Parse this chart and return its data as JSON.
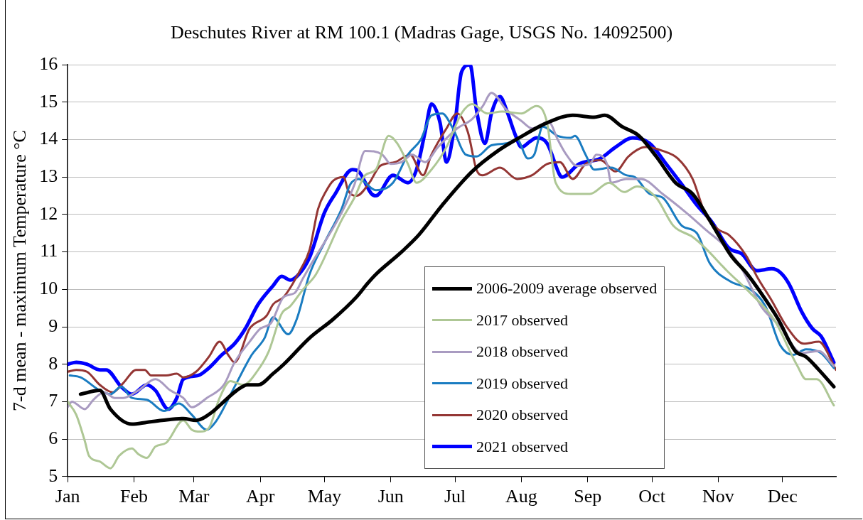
{
  "chart_data": {
    "type": "line",
    "title": "Deschutes River at RM 100.1 (Madras Gage, USGS No. 14092500)",
    "ylabel": "7-d mean - maximum Temperature °C",
    "xlim": [
      "--01-01",
      "--12-26"
    ],
    "xticks": [
      {
        "value": "--01-01",
        "label": "Jan"
      },
      {
        "value": "--02-01",
        "label": "Feb"
      },
      {
        "value": "--03-01",
        "label": "Mar"
      },
      {
        "value": "--04-01",
        "label": "Apr"
      },
      {
        "value": "--05-01",
        "label": "May"
      },
      {
        "value": "--06-01",
        "label": "Jun"
      },
      {
        "value": "--07-01",
        "label": "Jul"
      },
      {
        "value": "--08-01",
        "label": "Aug"
      },
      {
        "value": "--09-01",
        "label": "Sep"
      },
      {
        "value": "--10-01",
        "label": "Oct"
      },
      {
        "value": "--11-01",
        "label": "Nov"
      },
      {
        "value": "--12-01",
        "label": "Dec"
      }
    ],
    "ylim": [
      5,
      16
    ],
    "yticks": [
      5,
      6,
      7,
      8,
      9,
      10,
      11,
      12,
      13,
      14,
      15,
      16
    ],
    "grid": "y",
    "legend": "bottom",
    "marker": "none",
    "line_style": "solid",
    "series": [
      {
        "name": "2006-2009 average observed",
        "color": "#000000",
        "x": [
          "--01-07",
          "--01-16",
          "--01-21",
          "--01-31",
          "--02-07",
          "--02-14",
          "--02-24",
          "--03-02",
          "--03-09",
          "--03-14",
          "--03-21",
          "--03-26",
          "--03-31",
          "--04-07",
          "--04-12",
          "--04-24",
          "--05-05",
          "--05-16",
          "--05-21",
          "--05-25",
          "--06-06",
          "--06-14",
          "--06-25",
          "--07-09",
          "--07-21",
          "--07-31",
          "--08-13",
          "--08-25",
          "--09-04",
          "--09-09",
          "--09-17",
          "--09-25",
          "--10-03",
          "--10-12",
          "--10-20",
          "--10-29",
          "--11-07",
          "--11-14",
          "--11-21",
          "--11-29",
          "--12-07",
          "--12-12",
          "--12-18",
          "--12-25"
        ],
        "values": [
          7.2,
          7.3,
          6.8,
          6.4,
          6.45,
          6.5,
          6.55,
          6.5,
          6.7,
          6.95,
          7.3,
          7.45,
          7.45,
          7.75,
          8.0,
          8.7,
          9.2,
          9.8,
          10.15,
          10.4,
          11.0,
          11.45,
          12.25,
          13.15,
          13.7,
          14.05,
          14.45,
          14.65,
          14.6,
          14.65,
          14.35,
          14.1,
          13.55,
          12.85,
          12.55,
          11.75,
          10.9,
          10.45,
          9.9,
          9.2,
          8.35,
          8.2,
          7.85,
          7.4
        ]
      },
      {
        "name": "2017 observed",
        "color": "#aec795",
        "x": [
          "--01-01",
          "--01-05",
          "--01-09",
          "--01-11",
          "--01-16",
          "--01-21",
          "--01-25",
          "--01-31",
          "--02-03",
          "--02-07",
          "--02-11",
          "--02-16",
          "--02-24",
          "--02-28",
          "--03-04",
          "--03-08",
          "--03-13",
          "--03-18",
          "--03-24",
          "--03-31",
          "--04-05",
          "--04-11",
          "--04-15",
          "--04-21",
          "--04-27",
          "--05-09",
          "--05-15",
          "--05-20",
          "--05-25",
          "--05-31",
          "--06-04",
          "--06-09",
          "--06-13",
          "--06-20",
          "--06-27",
          "--07-04",
          "--07-09",
          "--07-16",
          "--07-23",
          "--08-01",
          "--08-08",
          "--08-13",
          "--08-17",
          "--08-24",
          "--09-02",
          "--09-11",
          "--09-18",
          "--09-24",
          "--10-03",
          "--10-11",
          "--10-20",
          "--10-26",
          "--11-05",
          "--11-16",
          "--11-27",
          "--12-08",
          "--12-12",
          "--12-17",
          "--12-25"
        ],
        "values": [
          7.0,
          6.65,
          5.95,
          5.55,
          5.4,
          5.22,
          5.55,
          5.75,
          5.6,
          5.5,
          5.8,
          5.9,
          6.5,
          6.25,
          6.2,
          6.3,
          7.1,
          7.55,
          7.45,
          7.85,
          8.35,
          9.35,
          9.55,
          10.0,
          10.4,
          11.85,
          12.45,
          13.05,
          13.2,
          14.1,
          13.9,
          13.35,
          12.85,
          13.2,
          13.8,
          14.7,
          14.95,
          14.7,
          14.75,
          14.7,
          14.9,
          14.45,
          12.85,
          12.55,
          12.55,
          12.85,
          12.6,
          12.75,
          12.45,
          11.7,
          11.4,
          11.1,
          10.5,
          9.9,
          9.2,
          7.95,
          7.6,
          7.6,
          6.9
        ]
      },
      {
        "name": "2018 observed",
        "color": "#a99bc1",
        "x": [
          "--01-01",
          "--01-03",
          "--01-09",
          "--01-13",
          "--01-18",
          "--01-23",
          "--01-27",
          "--02-03",
          "--02-11",
          "--02-18",
          "--02-24",
          "--02-28",
          "--03-07",
          "--03-15",
          "--03-20",
          "--03-27",
          "--04-01",
          "--04-06",
          "--04-12",
          "--04-17",
          "--04-21",
          "--04-24",
          "--05-09",
          "--05-15",
          "--05-20",
          "--05-28",
          "--06-01",
          "--06-06",
          "--06-11",
          "--06-17",
          "--06-23",
          "--07-02",
          "--07-09",
          "--07-14",
          "--07-18",
          "--07-25",
          "--08-01",
          "--08-06",
          "--08-14",
          "--08-18",
          "--08-22",
          "--08-27",
          "--09-02",
          "--09-05",
          "--09-10",
          "--09-12",
          "--09-19",
          "--09-26",
          "--10-06",
          "--10-17",
          "--10-26",
          "--11-05",
          "--11-12",
          "--11-21",
          "--11-30",
          "--12-10",
          "--12-18",
          "--12-25"
        ],
        "values": [
          6.85,
          7.0,
          6.8,
          7.05,
          7.25,
          7.1,
          7.1,
          7.3,
          7.6,
          7.3,
          7.1,
          6.85,
          7.1,
          7.45,
          8.05,
          8.6,
          8.95,
          9.1,
          9.8,
          9.9,
          10.3,
          10.6,
          12.05,
          12.8,
          13.7,
          13.6,
          13.35,
          13.4,
          13.6,
          13.4,
          13.8,
          14.3,
          14.55,
          14.9,
          15.25,
          14.8,
          14.5,
          14.3,
          14.45,
          14.0,
          13.6,
          13.3,
          13.35,
          13.6,
          13.35,
          12.85,
          12.95,
          12.95,
          12.55,
          12.05,
          11.6,
          11.1,
          10.55,
          9.55,
          9.0,
          8.3,
          8.35,
          7.95
        ]
      },
      {
        "name": "2019 observed",
        "color": "#1a7cc1",
        "x": [
          "--01-02",
          "--01-07",
          "--01-16",
          "--01-21",
          "--01-26",
          "--01-31",
          "--02-07",
          "--02-15",
          "--02-22",
          "--02-28",
          "--03-07",
          "--03-11",
          "--03-20",
          "--03-28",
          "--04-03",
          "--04-07",
          "--04-14",
          "--04-18",
          "--04-24",
          "--05-01",
          "--05-09",
          "--05-13",
          "--05-17",
          "--05-25",
          "--06-02",
          "--06-09",
          "--06-15",
          "--06-20",
          "--06-25",
          "--06-30",
          "--07-06",
          "--07-11",
          "--07-18",
          "--07-25",
          "--07-30",
          "--08-04",
          "--08-07",
          "--08-11",
          "--08-18",
          "--08-24",
          "--08-26",
          "--08-31",
          "--09-04",
          "--09-12",
          "--09-19",
          "--09-23",
          "--09-30",
          "--10-06",
          "--10-15",
          "--10-22",
          "--10-28",
          "--11-07",
          "--11-16",
          "--11-23",
          "--11-30",
          "--12-06",
          "--12-12",
          "--12-19",
          "--12-25"
        ],
        "values": [
          7.7,
          7.65,
          7.3,
          7.2,
          7.4,
          7.1,
          7.05,
          6.75,
          6.95,
          6.65,
          6.25,
          6.45,
          7.4,
          8.25,
          8.7,
          9.25,
          8.8,
          9.2,
          10.4,
          11.25,
          12.15,
          12.8,
          12.95,
          12.65,
          12.85,
          13.6,
          14.0,
          14.65,
          14.7,
          14.3,
          13.6,
          13.55,
          13.85,
          13.9,
          14.0,
          13.5,
          13.6,
          14.35,
          14.1,
          14.05,
          14.1,
          13.6,
          13.2,
          13.25,
          13.05,
          13.0,
          12.55,
          12.45,
          11.7,
          11.5,
          10.7,
          10.2,
          10.0,
          9.55,
          8.5,
          8.25,
          8.4,
          8.3,
          7.9
        ]
      },
      {
        "name": "2020 observed",
        "color": "#943634",
        "x": [
          "--01-01",
          "--01-05",
          "--01-10",
          "--01-16",
          "--01-22",
          "--01-27",
          "--02-02",
          "--02-06",
          "--02-09",
          "--02-16",
          "--02-21",
          "--02-24",
          "--03-02",
          "--03-08",
          "--03-13",
          "--03-17",
          "--03-20",
          "--03-27",
          "--04-04",
          "--04-07",
          "--04-12",
          "--04-20",
          "--04-24",
          "--04-28",
          "--05-02",
          "--05-05",
          "--05-10",
          "--05-12",
          "--05-16",
          "--05-22",
          "--05-27",
          "--06-03",
          "--06-10",
          "--06-16",
          "--06-20",
          "--06-27",
          "--07-02",
          "--07-07",
          "--07-11",
          "--07-14",
          "--07-22",
          "--07-30",
          "--08-06",
          "--08-13",
          "--08-19",
          "--08-25",
          "--08-31",
          "--09-07",
          "--09-14",
          "--09-20",
          "--09-28",
          "--10-06",
          "--10-13",
          "--10-20",
          "--10-26",
          "--11-01",
          "--11-06",
          "--11-14",
          "--11-19",
          "--11-26",
          "--12-03",
          "--12-11",
          "--12-18",
          "--12-26"
        ],
        "values": [
          7.8,
          7.85,
          7.8,
          7.45,
          7.25,
          7.5,
          7.85,
          7.85,
          7.7,
          7.7,
          7.75,
          7.65,
          7.8,
          8.2,
          8.6,
          8.25,
          8.05,
          8.95,
          9.3,
          9.6,
          9.8,
          10.55,
          11.05,
          12.15,
          12.65,
          12.9,
          13.0,
          12.65,
          12.5,
          12.85,
          13.3,
          13.4,
          13.6,
          13.05,
          13.6,
          14.3,
          14.7,
          14.2,
          13.2,
          13.05,
          13.25,
          12.95,
          13.05,
          13.35,
          13.4,
          12.95,
          13.35,
          13.45,
          13.15,
          13.55,
          13.8,
          13.7,
          13.5,
          12.95,
          12.0,
          11.6,
          11.45,
          10.9,
          10.35,
          9.7,
          9.0,
          8.55,
          8.6,
          7.85
        ]
      },
      {
        "name": "2021 observed",
        "color": "#0000ff",
        "x": [
          "--01-01",
          "--01-05",
          "--01-10",
          "--01-16",
          "--01-19",
          "--01-26",
          "--01-31",
          "--02-07",
          "--02-11",
          "--02-17",
          "--02-21",
          "--02-24",
          "--03-03",
          "--03-08",
          "--03-14",
          "--03-20",
          "--03-25",
          "--03-31",
          "--04-07",
          "--04-11",
          "--04-15",
          "--04-19",
          "--04-24",
          "--05-01",
          "--05-06",
          "--05-14",
          "--05-17",
          "--05-23",
          "--05-25",
          "--06-02",
          "--06-09",
          "--06-13",
          "--06-17",
          "--06-20",
          "--06-24",
          "--06-27",
          "--07-01",
          "--07-04",
          "--07-08",
          "--07-11",
          "--07-15",
          "--07-18",
          "--07-22",
          "--07-25",
          "--07-29",
          "--08-01",
          "--08-05",
          "--08-08",
          "--08-13",
          "--08-19",
          "--08-20",
          "--08-28",
          "--09-07",
          "--09-14",
          "--09-22",
          "--09-30",
          "--10-07",
          "--10-15",
          "--10-22",
          "--10-29",
          "--11-06",
          "--11-12",
          "--11-19",
          "--11-26",
          "--11-30",
          "--12-04",
          "--12-10",
          "--12-15",
          "--12-19",
          "--12-25"
        ],
        "values": [
          8.0,
          8.05,
          8.0,
          7.85,
          7.85,
          7.4,
          7.2,
          7.45,
          7.3,
          6.8,
          7.1,
          7.6,
          7.7,
          7.9,
          8.25,
          8.55,
          8.95,
          9.6,
          10.1,
          10.35,
          10.25,
          10.4,
          10.85,
          12.05,
          12.55,
          13.2,
          13.15,
          12.55,
          12.5,
          13.05,
          12.85,
          13.2,
          14.2,
          14.95,
          14.45,
          13.4,
          14.45,
          15.8,
          16.0,
          14.8,
          13.9,
          14.7,
          15.15,
          14.8,
          14.15,
          13.8,
          13.95,
          14.05,
          13.9,
          13.05,
          13.0,
          13.35,
          13.5,
          13.8,
          14.05,
          13.9,
          13.4,
          12.8,
          12.25,
          11.8,
          11.1,
          10.95,
          10.5,
          10.55,
          10.45,
          10.15,
          9.4,
          8.95,
          8.75,
          8.05
        ]
      }
    ]
  }
}
